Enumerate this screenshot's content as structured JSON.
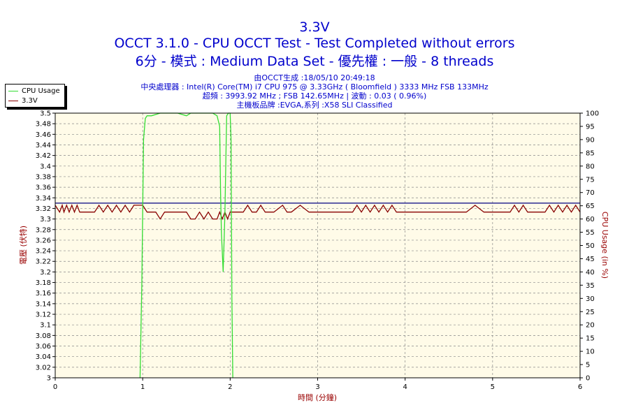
{
  "chart_data": {
    "type": "line",
    "title": "3.3V",
    "subtitle_lines": [
      "OCCT 3.1.0 - CPU OCCT Test - Test Completed without errors",
      "6分 - 模式 : Medium Data Set - 優先權 : 一般 - 8 threads"
    ],
    "info_lines": [
      "由OCCT生成 :18/05/10 20:49:18",
      "中央處理器 : Intel(R) Core(TM) i7 CPU 975 @ 3.33GHz ( Bloomfield ) 3333 MHz FSB 133MHz",
      "超頻 : 3993.92 MHz ; FSB 142.65MHz | 波動 : 0.03 ( 0.96%)",
      "主機板品牌 :EVGA,系列 :X58 SLI Classified"
    ],
    "xlabel": "時間 (分鐘)",
    "ylabel_left": "電壓 (伏特)",
    "ylabel_right": "CPU Usage (in %)",
    "xlim": [
      0,
      6
    ],
    "ylim_left": [
      3.0,
      3.5
    ],
    "ylim_right": [
      0,
      100
    ],
    "x_ticks": [
      "0",
      "1",
      "2",
      "3",
      "4",
      "5",
      "6"
    ],
    "y_left_ticks": [
      "3",
      "3.02",
      "3.04",
      "3.06",
      "3.08",
      "3.1",
      "3.12",
      "3.14",
      "3.16",
      "3.18",
      "3.2",
      "3.22",
      "3.24",
      "3.26",
      "3.28",
      "3.3",
      "3.32",
      "3.34",
      "3.36",
      "3.38",
      "3.4",
      "3.42",
      "3.44",
      "3.46",
      "3.48",
      "3.5"
    ],
    "y_right_ticks": [
      "0",
      "5",
      "10",
      "15",
      "20",
      "25",
      "30",
      "35",
      "40",
      "45",
      "50",
      "55",
      "60",
      "65",
      "70",
      "75",
      "80",
      "85",
      "90",
      "95",
      "100"
    ],
    "grid": true,
    "legend": "top-left",
    "colors": {
      "cpu_usage": "#33dd33",
      "voltage": "#880000",
      "reference_line": "#000080",
      "plot_bg": "#fffbe8",
      "grid": "#888888",
      "text": "#0000cc",
      "left_axis_label": "#990000",
      "right_axis_label": "#990000"
    },
    "series": [
      {
        "name": "CPU Usage",
        "axis": "right",
        "x": [
          0.97,
          0.99,
          1.01,
          1.03,
          1.05,
          1.1,
          1.2,
          1.3,
          1.4,
          1.5,
          1.55,
          1.6,
          1.7,
          1.8,
          1.85,
          1.88,
          1.89,
          1.9,
          1.92,
          1.94,
          1.96,
          1.98,
          2.0,
          2.01,
          2.02,
          2.03
        ],
        "values": [
          0,
          35,
          90,
          98,
          99,
          99,
          100,
          100,
          100,
          99,
          100,
          100,
          100,
          100,
          99,
          95,
          70,
          55,
          40,
          62,
          99,
          100,
          100,
          90,
          30,
          0
        ]
      },
      {
        "name": "3.3V",
        "axis": "left",
        "x": [
          0,
          0.05,
          0.08,
          0.1,
          0.13,
          0.16,
          0.19,
          0.22,
          0.25,
          0.28,
          0.31,
          0.35,
          0.45,
          0.5,
          0.55,
          0.6,
          0.65,
          0.7,
          0.75,
          0.8,
          0.85,
          0.9,
          0.95,
          1.0,
          1.05,
          1.1,
          1.15,
          1.2,
          1.25,
          1.3,
          1.4,
          1.5,
          1.55,
          1.6,
          1.65,
          1.7,
          1.75,
          1.8,
          1.85,
          1.88,
          1.91,
          1.94,
          1.97,
          2.0,
          2.05,
          2.1,
          2.15,
          2.2,
          2.25,
          2.3,
          2.35,
          2.4,
          2.45,
          2.5,
          2.6,
          2.65,
          2.7,
          2.8,
          2.9,
          2.95,
          3.0,
          3.1,
          3.2,
          3.3,
          3.4,
          3.45,
          3.5,
          3.55,
          3.6,
          3.65,
          3.7,
          3.75,
          3.8,
          3.85,
          3.9,
          3.95,
          4.0,
          4.1,
          4.2,
          4.3,
          4.4,
          4.5,
          4.6,
          4.7,
          4.8,
          4.9,
          5.0,
          5.1,
          5.2,
          5.25,
          5.3,
          5.35,
          5.4,
          5.5,
          5.6,
          5.65,
          5.7,
          5.75,
          5.8,
          5.85,
          5.9,
          5.95,
          6.0
        ],
        "values": [
          3.326,
          3.313,
          3.326,
          3.313,
          3.326,
          3.313,
          3.326,
          3.313,
          3.326,
          3.313,
          3.313,
          3.313,
          3.313,
          3.326,
          3.313,
          3.326,
          3.313,
          3.326,
          3.313,
          3.326,
          3.313,
          3.326,
          3.326,
          3.326,
          3.313,
          3.313,
          3.313,
          3.3,
          3.313,
          3.313,
          3.313,
          3.313,
          3.3,
          3.3,
          3.313,
          3.3,
          3.313,
          3.3,
          3.3,
          3.313,
          3.3,
          3.313,
          3.3,
          3.313,
          3.313,
          3.313,
          3.313,
          3.326,
          3.313,
          3.313,
          3.326,
          3.313,
          3.313,
          3.313,
          3.326,
          3.313,
          3.313,
          3.326,
          3.313,
          3.313,
          3.313,
          3.313,
          3.313,
          3.313,
          3.313,
          3.326,
          3.313,
          3.326,
          3.313,
          3.326,
          3.313,
          3.326,
          3.313,
          3.326,
          3.313,
          3.313,
          3.313,
          3.313,
          3.313,
          3.313,
          3.313,
          3.313,
          3.313,
          3.313,
          3.326,
          3.313,
          3.313,
          3.313,
          3.313,
          3.326,
          3.313,
          3.326,
          3.313,
          3.313,
          3.313,
          3.326,
          3.313,
          3.326,
          3.313,
          3.326,
          3.313,
          3.326,
          3.313
        ]
      }
    ],
    "reference_line_value": 3.33
  }
}
